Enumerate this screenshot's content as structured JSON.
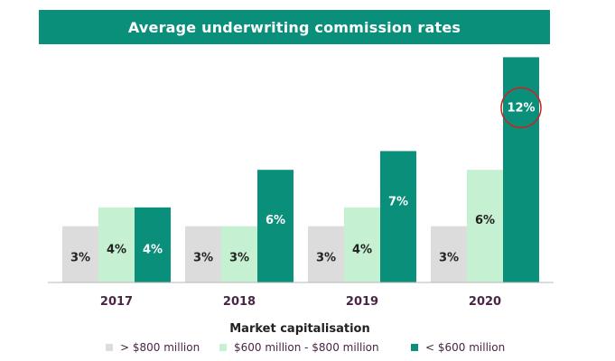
{
  "chart_data": {
    "type": "bar",
    "title": "Average underwriting commission rates",
    "xlabel": "Market capitalisation",
    "ylabel": "",
    "categories": [
      "2017",
      "2018",
      "2019",
      "2020"
    ],
    "series": [
      {
        "name": "> $800 million",
        "color": "#dcdcdc",
        "label_color": "#222222",
        "values": [
          3,
          3,
          3,
          3
        ],
        "labels": [
          "3%",
          "3%",
          "3%",
          "3%"
        ]
      },
      {
        "name": "$600 million - $800 million",
        "color": "#c6f0d2",
        "label_color": "#222222",
        "values": [
          4,
          3,
          4,
          6
        ],
        "labels": [
          "4%",
          "3%",
          "4%",
          "6%"
        ]
      },
      {
        "name": "< $600 million",
        "color": "#0a8f7b",
        "label_color": "#ffffff",
        "values": [
          4,
          6,
          7,
          12
        ],
        "labels": [
          "4%",
          "6%",
          "7%",
          "12%"
        ]
      }
    ],
    "annotations": [
      {
        "type": "circle",
        "category": "2020",
        "series": 2,
        "color": "#cc2222"
      }
    ],
    "grid": false,
    "legend_position": "bottom"
  }
}
